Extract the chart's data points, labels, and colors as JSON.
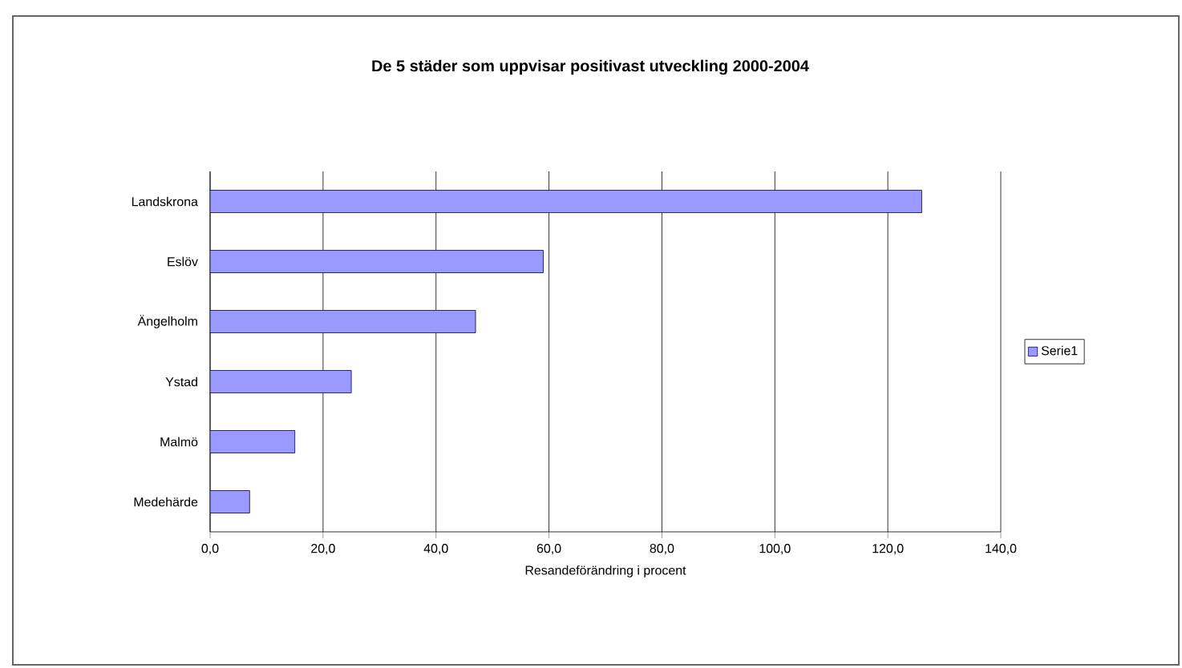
{
  "chart_data": {
    "type": "bar",
    "orientation": "horizontal",
    "title": "De 5 städer som uppvisar positivast utveckling 2000-2004",
    "xlabel": "Resandeförändring i procent",
    "categories": [
      "Landskrona",
      "Eslöv",
      "Ängelholm",
      "Ystad",
      "Malmö",
      "Medehärde"
    ],
    "series": [
      {
        "name": "Serie1",
        "color": "#9999ff",
        "values": [
          126,
          59,
          47,
          25,
          15,
          7
        ]
      }
    ],
    "xlim": [
      0,
      140
    ],
    "xticks": [
      {
        "value": 0,
        "label": "0,0"
      },
      {
        "value": 20,
        "label": "20,0"
      },
      {
        "value": 40,
        "label": "40,0"
      },
      {
        "value": 60,
        "label": "60,0"
      },
      {
        "value": 80,
        "label": "80,0"
      },
      {
        "value": 100,
        "label": "100,0"
      },
      {
        "value": 120,
        "label": "120,0"
      },
      {
        "value": 140,
        "label": "140,0"
      }
    ],
    "grid": "x",
    "legend": "right"
  }
}
